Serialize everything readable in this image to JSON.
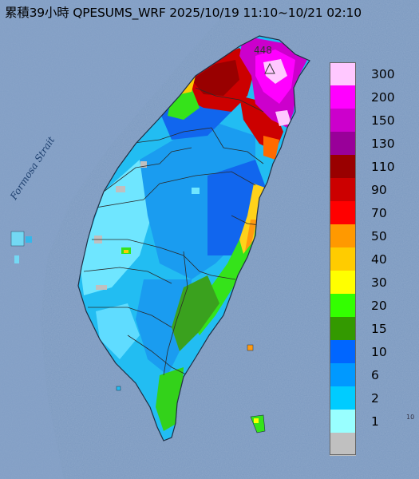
{
  "title": "累積39小時 QPESUMS_WRF 2025/10/19 11:10~10/21 02:10",
  "strait_label": "Formosa Strait",
  "peak_value": "448",
  "corner_mark": "10",
  "legend": [
    {
      "label": "300",
      "color": "#ffc8ff"
    },
    {
      "label": "200",
      "color": "#ff00ff"
    },
    {
      "label": "150",
      "color": "#cc00cc"
    },
    {
      "label": "130",
      "color": "#990099"
    },
    {
      "label": "110",
      "color": "#990000"
    },
    {
      "label": "90",
      "color": "#cc0000"
    },
    {
      "label": "70",
      "color": "#ff0000"
    },
    {
      "label": "50",
      "color": "#ff9900"
    },
    {
      "label": "40",
      "color": "#ffcc00"
    },
    {
      "label": "30",
      "color": "#ffff00"
    },
    {
      "label": "20",
      "color": "#33ff00"
    },
    {
      "label": "15",
      "color": "#339900"
    },
    {
      "label": "10",
      "color": "#0066ff"
    },
    {
      "label": "6",
      "color": "#0099ff"
    },
    {
      "label": "2",
      "color": "#00ccff"
    },
    {
      "label": "1",
      "color": "#99ffff"
    },
    {
      "label": "",
      "color": "#c0c0c0"
    }
  ],
  "colors": {
    "sea": "#6f8fb6",
    "coast": "#20324a",
    "county_line": "#303030"
  }
}
